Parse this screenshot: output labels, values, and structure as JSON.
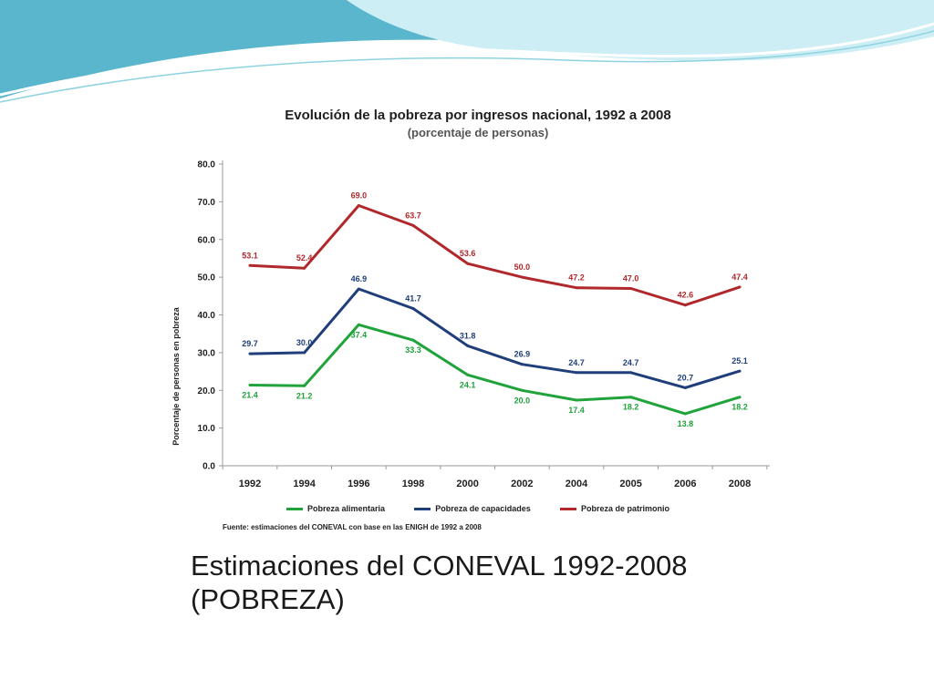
{
  "slide": {
    "caption": "Estimaciones del CONEVAL  1992-2008 (POBREZA)",
    "wave_colors": [
      "#5ab6cc",
      "#8fd3e0",
      "#cdeef4"
    ]
  },
  "chart_data": {
    "type": "line",
    "title": "Evolución de la pobreza por ingresos nacional, 1992 a 2008",
    "subtitle": "(porcentaje de personas)",
    "xlabel": "",
    "ylabel": "Porcentaje de personas en pobreza",
    "categories": [
      "1992",
      "1994",
      "1996",
      "1998",
      "2000",
      "2002",
      "2004",
      "2005",
      "2006",
      "2008"
    ],
    "ylim": [
      0,
      80
    ],
    "yticks": [
      0,
      10,
      20,
      30,
      40,
      50,
      60,
      70,
      80
    ],
    "ytick_labels": [
      "0.0",
      "10.0",
      "20.0",
      "30.0",
      "40.0",
      "50.0",
      "60.0",
      "70.0",
      "80.0"
    ],
    "grid": false,
    "legend_position": "bottom",
    "series": [
      {
        "name": "Pobreza alimentaria",
        "color": "#1fa33a",
        "values": [
          21.4,
          21.2,
          37.4,
          33.3,
          24.1,
          20.0,
          17.4,
          18.2,
          13.8,
          18.2
        ],
        "labels": [
          "21.4",
          "21.2",
          "37.4",
          "33.3",
          "24.1",
          "20.0",
          "17.4",
          "18.2",
          "13.8",
          "18.2"
        ]
      },
      {
        "name": "Pobreza de capacidades",
        "color": "#1f3e7a",
        "values": [
          29.7,
          30.0,
          46.9,
          41.7,
          31.8,
          26.9,
          24.7,
          24.7,
          20.7,
          25.1
        ],
        "labels": [
          "29.7",
          "30.0",
          "46.9",
          "41.7",
          "31.8",
          "26.9",
          "24.7",
          "24.7",
          "20.7",
          "25.1"
        ]
      },
      {
        "name": "Pobreza de patrimonio",
        "color": "#b0282c",
        "values": [
          53.1,
          52.4,
          69.0,
          63.7,
          53.6,
          50.0,
          47.2,
          47.0,
          42.6,
          47.4
        ],
        "labels": [
          "53.1",
          "52.4",
          "69.0",
          "63.7",
          "53.6",
          "50.0",
          "47.2",
          "47.0",
          "42.6",
          "47.4"
        ]
      }
    ],
    "source": "Fuente: estimaciones del CONEVAL  con base en las ENIGH  de 1992 a 2008"
  }
}
